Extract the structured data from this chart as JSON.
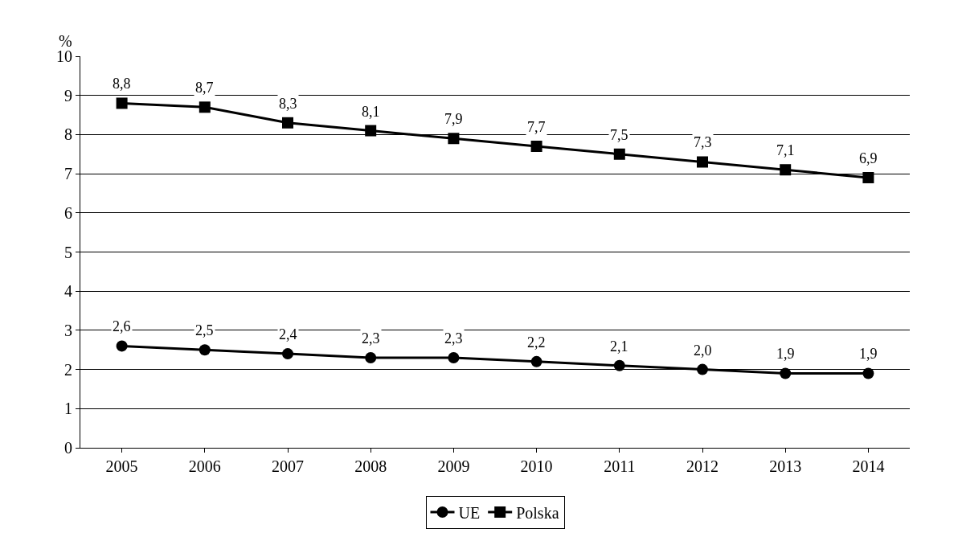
{
  "chart_data": {
    "type": "line",
    "ylabel": "%",
    "categories": [
      "2005",
      "2006",
      "2007",
      "2008",
      "2009",
      "2010",
      "2011",
      "2012",
      "2013",
      "2014"
    ],
    "series": [
      {
        "name": "UE",
        "color": "#000000",
        "marker": "circle",
        "values": [
          2.6,
          2.5,
          2.4,
          2.3,
          2.3,
          2.2,
          2.1,
          2.0,
          1.9,
          1.9
        ],
        "value_labels": [
          "2,6",
          "2,5",
          "2,4",
          "2,3",
          "2,3",
          "2,2",
          "2,1",
          "2,0",
          "1,9",
          "1,9"
        ]
      },
      {
        "name": "Polska",
        "color": "#000000",
        "marker": "square",
        "values": [
          8.8,
          8.7,
          8.3,
          8.1,
          7.9,
          7.7,
          7.5,
          7.3,
          7.1,
          6.9
        ],
        "value_labels": [
          "8,8",
          "8,7",
          "8,3",
          "8,1",
          "7,9",
          "7,7",
          "7,5",
          "7,3",
          "7,1",
          "6,9"
        ]
      }
    ],
    "ylim": [
      0,
      10
    ],
    "yticks": [
      0,
      1,
      2,
      3,
      4,
      5,
      6,
      7,
      8,
      9,
      10
    ],
    "grid": "y",
    "legend": "bottom",
    "line_style": "solid"
  }
}
